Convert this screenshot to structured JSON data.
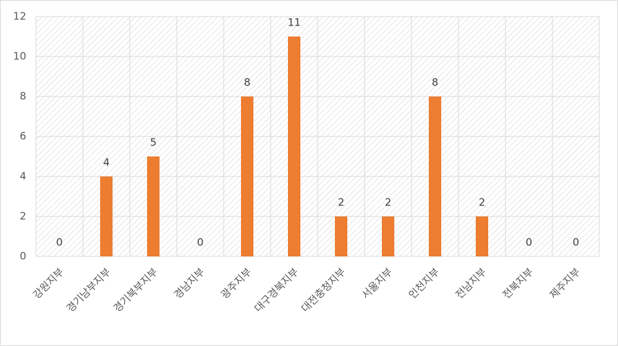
{
  "chart_data": {
    "type": "bar",
    "categories": [
      "강원지부",
      "경기남부지부",
      "경기북부지부",
      "경남지부",
      "광주지부",
      "대구경북지부",
      "대전충청지부",
      "서울지부",
      "인천지부",
      "전남지부",
      "전북지부",
      "제주지부"
    ],
    "values": [
      0,
      4,
      5,
      0,
      8,
      11,
      2,
      2,
      8,
      2,
      0,
      0
    ],
    "color": "#ed7d31",
    "ylim": [
      0,
      12
    ],
    "yticks": [
      0,
      2,
      4,
      6,
      8,
      10,
      12
    ],
    "grid": true
  }
}
